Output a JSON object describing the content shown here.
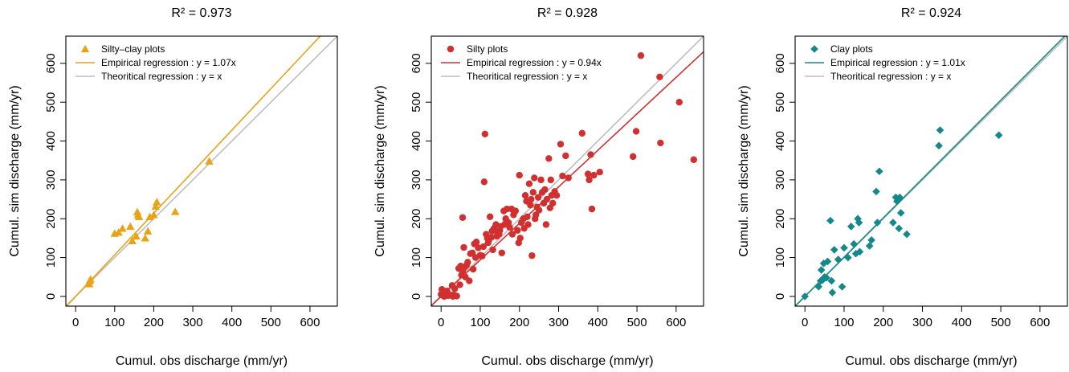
{
  "chart_data": [
    {
      "type": "scatter",
      "title": "R² = 0.973",
      "xlabel": "Cumul. obs discharge (mm/yr)",
      "ylabel": "Cumul. sim discharge (mm/yr)",
      "xlim": [
        -25,
        670
      ],
      "ylim": [
        -25,
        670
      ],
      "xticks": [
        0,
        100,
        200,
        300,
        400,
        500,
        600
      ],
      "yticks": [
        0,
        100,
        200,
        300,
        400,
        500,
        600
      ],
      "legend_position": "top-left",
      "series": [
        {
          "name": "Silty–clay plots",
          "kind": "points",
          "marker": "triangle",
          "color": "#E8A317",
          "points": [
            [
              35,
              32
            ],
            [
              36,
              40
            ],
            [
              38,
              44
            ],
            [
              100,
              162
            ],
            [
              110,
              165
            ],
            [
              120,
              175
            ],
            [
              140,
              180
            ],
            [
              145,
              143
            ],
            [
              155,
              155
            ],
            [
              158,
              217
            ],
            [
              160,
              210
            ],
            [
              162,
              205
            ],
            [
              178,
              150
            ],
            [
              185,
              168
            ],
            [
              190,
              205
            ],
            [
              200,
              210
            ],
            [
              205,
              232
            ],
            [
              208,
              243
            ],
            [
              255,
              218
            ],
            [
              342,
              348
            ]
          ]
        },
        {
          "name": "Empirical regression : y = 1.07x",
          "kind": "line",
          "slope": 1.07,
          "color": "#E8A317"
        },
        {
          "name": "Theoritical regression : y = x",
          "kind": "line",
          "slope": 1.0,
          "color": "#BEBEBE"
        }
      ]
    },
    {
      "type": "scatter",
      "title": "R² = 0.928",
      "xlabel": "Cumul. obs discharge (mm/yr)",
      "ylabel": "Cumul. sim discharge (mm/yr)",
      "xlim": [
        -25,
        670
      ],
      "ylim": [
        -25,
        670
      ],
      "xticks": [
        0,
        100,
        200,
        300,
        400,
        500,
        600
      ],
      "yticks": [
        0,
        100,
        200,
        300,
        400,
        500,
        600
      ],
      "legend_position": "top-left",
      "series": [
        {
          "name": "Silty plots",
          "kind": "points",
          "marker": "circle",
          "color": "#D03030",
          "points": [
            [
              0,
              5
            ],
            [
              2,
              18
            ],
            [
              5,
              2
            ],
            [
              8,
              0
            ],
            [
              10,
              3
            ],
            [
              12,
              8
            ],
            [
              15,
              14
            ],
            [
              18,
              2
            ],
            [
              20,
              5
            ],
            [
              25,
              3
            ],
            [
              28,
              28
            ],
            [
              30,
              0
            ],
            [
              32,
              4
            ],
            [
              35,
              20
            ],
            [
              40,
              1
            ],
            [
              45,
              72
            ],
            [
              48,
              30
            ],
            [
              50,
              78
            ],
            [
              52,
              55
            ],
            [
              55,
              65
            ],
            [
              55,
              203
            ],
            [
              58,
              126
            ],
            [
              60,
              75
            ],
            [
              62,
              50
            ],
            [
              65,
              80
            ],
            [
              68,
              88
            ],
            [
              72,
              40
            ],
            [
              75,
              110
            ],
            [
              80,
              112
            ],
            [
              82,
              70
            ],
            [
              85,
              135
            ],
            [
              88,
              100
            ],
            [
              90,
              140
            ],
            [
              95,
              125
            ],
            [
              100,
              106
            ],
            [
              105,
              104
            ],
            [
              108,
              128
            ],
            [
              110,
              295
            ],
            [
              112,
              418
            ],
            [
              115,
              160
            ],
            [
              118,
              150
            ],
            [
              120,
              138
            ],
            [
              122,
              145
            ],
            [
              125,
              205
            ],
            [
              128,
              152
            ],
            [
              130,
              168
            ],
            [
              132,
              120
            ],
            [
              135,
              175
            ],
            [
              140,
              185
            ],
            [
              142,
              155
            ],
            [
              145,
              165
            ],
            [
              148,
              160
            ],
            [
              150,
              170
            ],
            [
              152,
              180
            ],
            [
              155,
              112
            ],
            [
              160,
              220
            ],
            [
              162,
              185
            ],
            [
              165,
              200
            ],
            [
              168,
              225
            ],
            [
              172,
              190
            ],
            [
              175,
              178
            ],
            [
              180,
              225
            ],
            [
              182,
              160
            ],
            [
              185,
              210
            ],
            [
              190,
              220
            ],
            [
              195,
              170
            ],
            [
              198,
              138
            ],
            [
              200,
              312
            ],
            [
              202,
              150
            ],
            [
              205,
              190
            ],
            [
              210,
              200
            ],
            [
              212,
              175
            ],
            [
              215,
              260
            ],
            [
              218,
              245
            ],
            [
              220,
              205
            ],
            [
              222,
              185
            ],
            [
              225,
              290
            ],
            [
              228,
              235
            ],
            [
              230,
              250
            ],
            [
              232,
              105
            ],
            [
              235,
              268
            ],
            [
              238,
              305
            ],
            [
              240,
              200
            ],
            [
              242,
              210
            ],
            [
              245,
              230
            ],
            [
              248,
              255
            ],
            [
              250,
              222
            ],
            [
              255,
              300
            ],
            [
              258,
              268
            ],
            [
              262,
              240
            ],
            [
              265,
              275
            ],
            [
              268,
              185
            ],
            [
              270,
              250
            ],
            [
              275,
              355
            ],
            [
              278,
              228
            ],
            [
              280,
              300
            ],
            [
              282,
              260
            ],
            [
              285,
              240
            ],
            [
              290,
              270
            ],
            [
              295,
              260
            ],
            [
              305,
              392
            ],
            [
              310,
              310
            ],
            [
              318,
              362
            ],
            [
              325,
              305
            ],
            [
              360,
              420
            ],
            [
              375,
              315
            ],
            [
              378,
              300
            ],
            [
              382,
              365
            ],
            [
              385,
              225
            ],
            [
              390,
              312
            ],
            [
              405,
              320
            ],
            [
              490,
              360
            ],
            [
              498,
              425
            ],
            [
              510,
              620
            ],
            [
              558,
              565
            ],
            [
              560,
              395
            ],
            [
              608,
              500
            ],
            [
              645,
              352
            ]
          ]
        },
        {
          "name": "Empirical regression : y = 0.94x",
          "kind": "line",
          "slope": 0.94,
          "color": "#D03030"
        },
        {
          "name": "Theoritical regression : y = x",
          "kind": "line",
          "slope": 1.0,
          "color": "#BEBEBE"
        }
      ]
    },
    {
      "type": "scatter",
      "title": "R² = 0.924",
      "xlabel": "Cumul. obs discharge (mm/yr)",
      "ylabel": "Cumul. sim discharge (mm/yr)",
      "xlim": [
        -25,
        670
      ],
      "ylim": [
        -25,
        670
      ],
      "xticks": [
        0,
        100,
        200,
        300,
        400,
        500,
        600
      ],
      "yticks": [
        0,
        100,
        200,
        300,
        400,
        500,
        600
      ],
      "legend_position": "top-left",
      "series": [
        {
          "name": "Clay plots",
          "kind": "points",
          "marker": "diamond",
          "color": "#14888A",
          "points": [
            [
              0,
              0
            ],
            [
              35,
              25
            ],
            [
              40,
              40
            ],
            [
              42,
              68
            ],
            [
              45,
              42
            ],
            [
              48,
              85
            ],
            [
              50,
              50
            ],
            [
              55,
              48
            ],
            [
              58,
              90
            ],
            [
              65,
              195
            ],
            [
              68,
              40
            ],
            [
              70,
              10
            ],
            [
              75,
              120
            ],
            [
              85,
              95
            ],
            [
              95,
              25
            ],
            [
              100,
              125
            ],
            [
              110,
              100
            ],
            [
              118,
              180
            ],
            [
              125,
              135
            ],
            [
              130,
              110
            ],
            [
              135,
              200
            ],
            [
              138,
              190
            ],
            [
              140,
              115
            ],
            [
              165,
              130
            ],
            [
              170,
              145
            ],
            [
              182,
              270
            ],
            [
              185,
              190
            ],
            [
              190,
              322
            ],
            [
              225,
              190
            ],
            [
              232,
              255
            ],
            [
              235,
              245
            ],
            [
              240,
              175
            ],
            [
              242,
              255
            ],
            [
              245,
              215
            ],
            [
              260,
              160
            ],
            [
              342,
              388
            ],
            [
              345,
              428
            ],
            [
              495,
              415
            ]
          ]
        },
        {
          "name": "Empirical regression : y = 1.01x",
          "kind": "line",
          "slope": 1.01,
          "color": "#14888A"
        },
        {
          "name": "Theoritical regression : y = x",
          "kind": "line",
          "slope": 1.0,
          "color": "#BEBEBE"
        }
      ]
    }
  ]
}
